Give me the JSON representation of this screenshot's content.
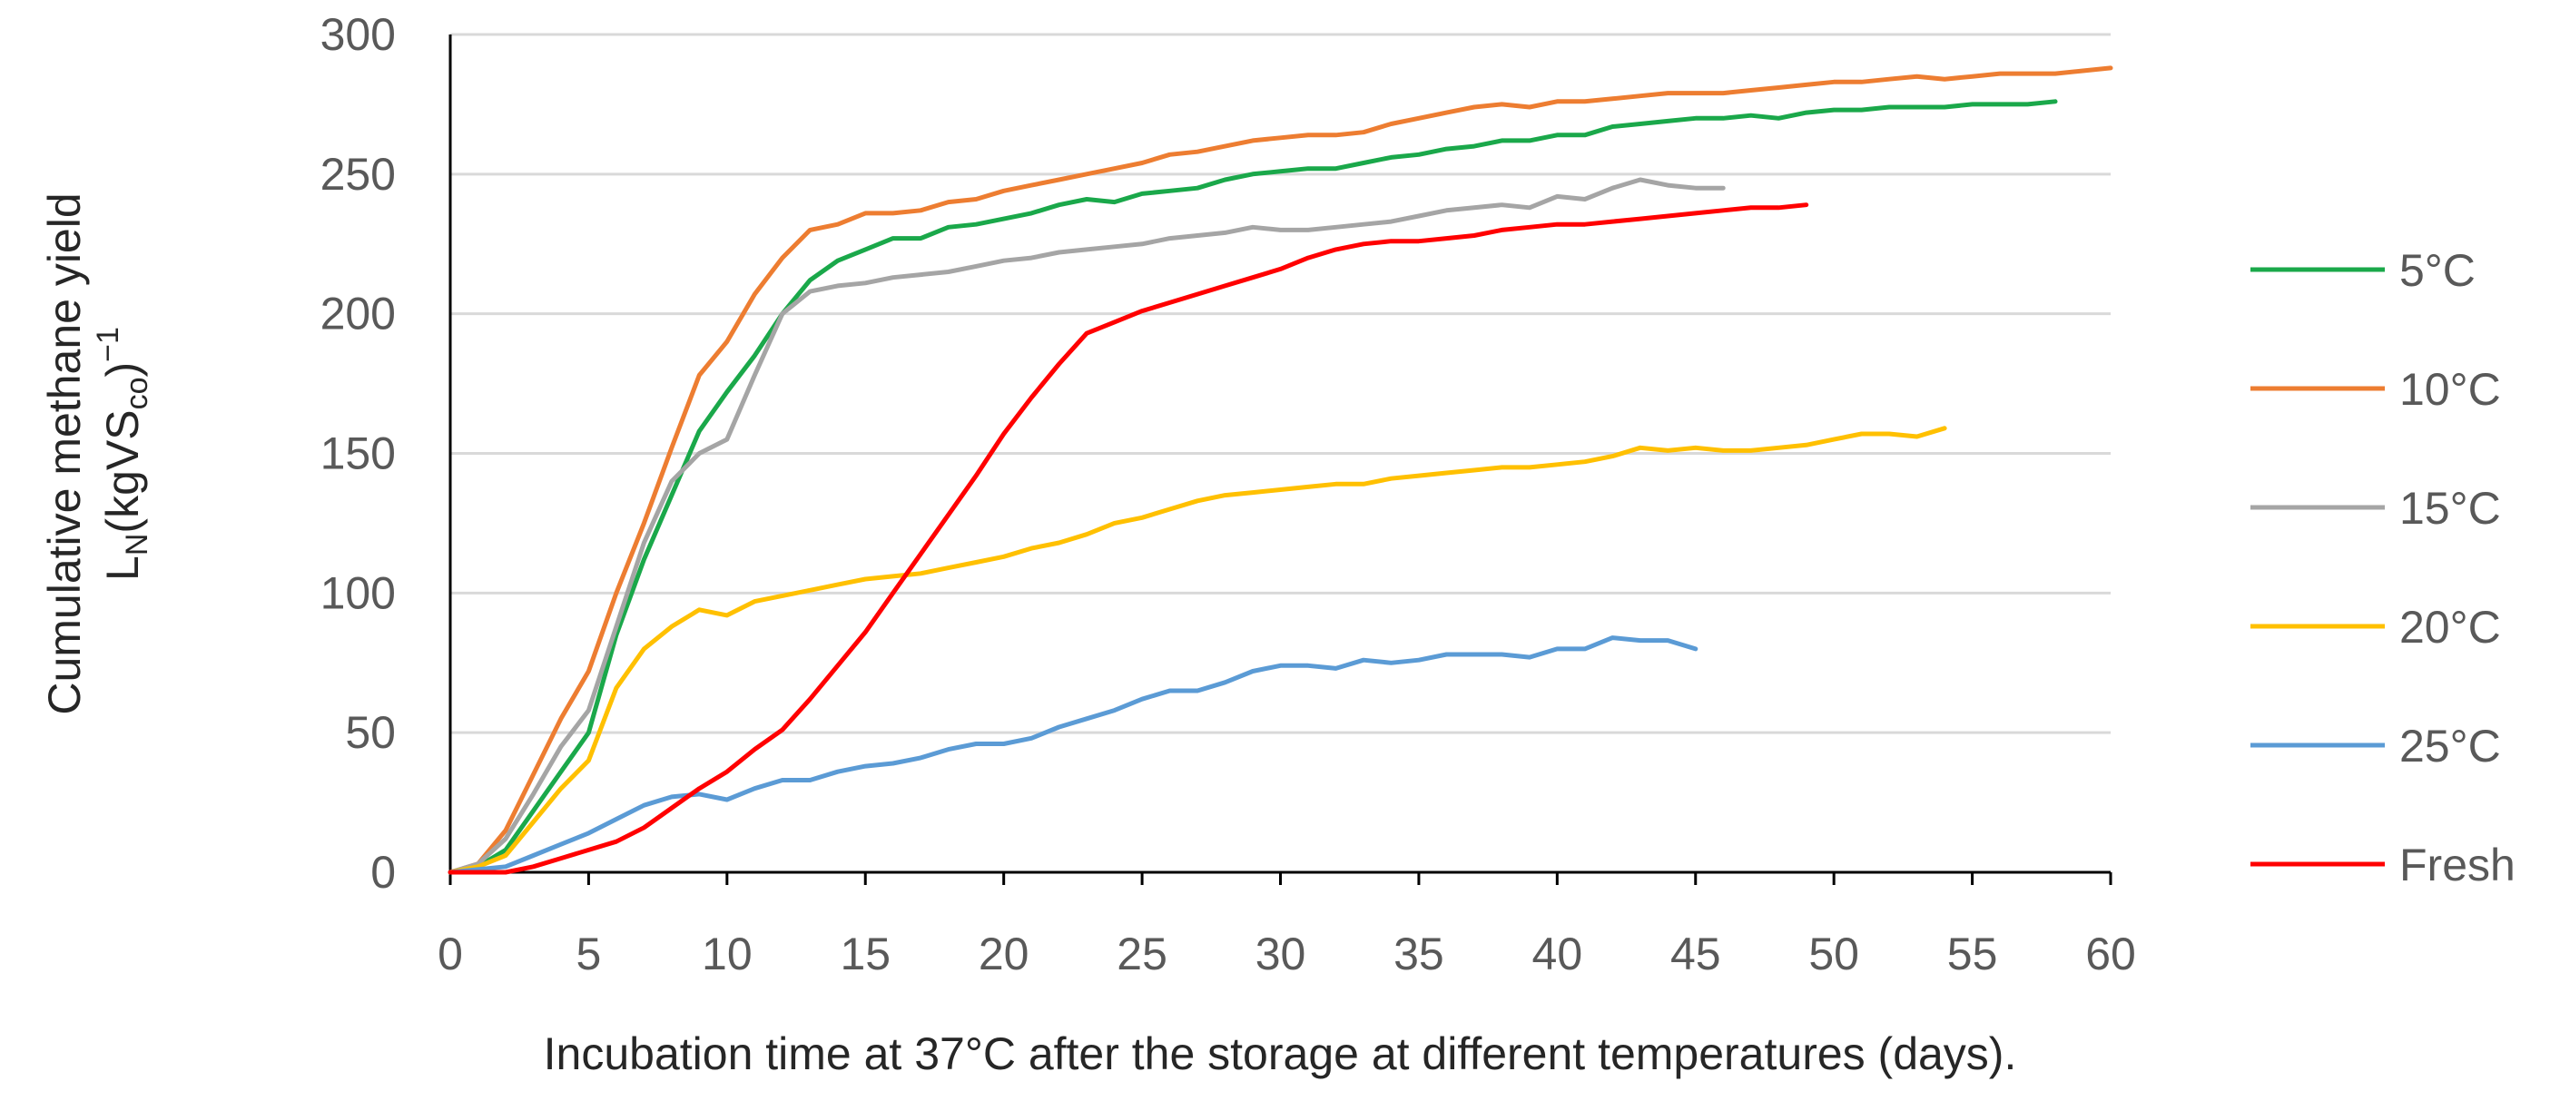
{
  "chart_data": {
    "type": "line",
    "title": "",
    "xlabel": "Incubation time at 37°C after the storage at different temperatures (days).",
    "ylabel": {
      "line1": "Cumulative methane yield",
      "line2_main": "L",
      "line2_sub_n": "N",
      "line2_paren": "(kgVS",
      "line2_sub_co": "co",
      "line2_close": ")",
      "line2_sup": "−1"
    },
    "xlim": [
      0,
      60
    ],
    "ylim": [
      0,
      300
    ],
    "x_ticks": [
      0,
      5,
      10,
      15,
      20,
      25,
      30,
      35,
      40,
      45,
      50,
      55,
      60
    ],
    "y_ticks": [
      0,
      50,
      100,
      150,
      200,
      250,
      300
    ],
    "grid": "horizontal",
    "legend_position": "right",
    "series": [
      {
        "name": "5°C",
        "color": "#1aa84a",
        "x": [
          0,
          1,
          2,
          3,
          4,
          5,
          6,
          7,
          8,
          9,
          10,
          11,
          12,
          13,
          14,
          15,
          16,
          17,
          18,
          19,
          20,
          21,
          22,
          23,
          24,
          25,
          26,
          27,
          28,
          29,
          30,
          31,
          32,
          33,
          34,
          35,
          36,
          37,
          38,
          39,
          40,
          41,
          42,
          43,
          44,
          45,
          46,
          47,
          48,
          49,
          50,
          51,
          52,
          53,
          54,
          55,
          56,
          57,
          58
        ],
        "values": [
          0,
          2,
          8,
          22,
          36,
          50,
          85,
          112,
          135,
          158,
          172,
          185,
          200,
          212,
          219,
          223,
          227,
          227,
          231,
          232,
          234,
          236,
          239,
          241,
          240,
          243,
          244,
          245,
          248,
          250,
          251,
          252,
          252,
          254,
          256,
          257,
          259,
          260,
          262,
          262,
          264,
          264,
          267,
          268,
          269,
          270,
          270,
          271,
          270,
          272,
          273,
          273,
          274,
          274,
          274,
          275,
          275,
          275,
          276
        ]
      },
      {
        "name": "10°C",
        "color": "#ed7d31",
        "x": [
          0,
          1,
          2,
          3,
          4,
          5,
          6,
          7,
          8,
          9,
          10,
          11,
          12,
          13,
          14,
          15,
          16,
          17,
          18,
          19,
          20,
          21,
          22,
          23,
          24,
          25,
          26,
          27,
          28,
          29,
          30,
          31,
          32,
          33,
          34,
          35,
          36,
          37,
          38,
          39,
          40,
          41,
          42,
          43,
          44,
          45,
          46,
          47,
          48,
          49,
          50,
          51,
          52,
          53,
          54,
          55,
          56,
          57,
          58,
          59,
          60
        ],
        "values": [
          0,
          3,
          15,
          35,
          55,
          72,
          100,
          125,
          152,
          178,
          190,
          207,
          220,
          230,
          232,
          236,
          236,
          237,
          240,
          241,
          244,
          246,
          248,
          250,
          252,
          254,
          257,
          258,
          260,
          262,
          263,
          264,
          264,
          265,
          268,
          270,
          272,
          274,
          275,
          274,
          276,
          276,
          277,
          278,
          279,
          279,
          279,
          280,
          281,
          282,
          283,
          283,
          284,
          285,
          284,
          285,
          286,
          286,
          286,
          287,
          288
        ]
      },
      {
        "name": "15°C",
        "color": "#a5a5a5",
        "x": [
          0,
          1,
          2,
          3,
          4,
          5,
          6,
          7,
          8,
          9,
          10,
          11,
          12,
          13,
          14,
          15,
          16,
          17,
          18,
          19,
          20,
          21,
          22,
          23,
          24,
          25,
          26,
          27,
          28,
          29,
          30,
          31,
          32,
          33,
          34,
          35,
          36,
          37,
          38,
          39,
          40,
          41,
          42,
          43,
          44,
          45,
          46
        ],
        "values": [
          0,
          3,
          12,
          28,
          45,
          58,
          88,
          118,
          140,
          150,
          155,
          178,
          200,
          208,
          210,
          211,
          213,
          214,
          215,
          217,
          219,
          220,
          222,
          223,
          224,
          225,
          227,
          228,
          229,
          231,
          230,
          230,
          231,
          232,
          233,
          235,
          237,
          238,
          239,
          238,
          242,
          241,
          245,
          248,
          246,
          245,
          245
        ]
      },
      {
        "name": "20°C",
        "color": "#ffc000",
        "x": [
          0,
          1,
          2,
          3,
          4,
          5,
          6,
          7,
          8,
          9,
          10,
          11,
          12,
          13,
          14,
          15,
          16,
          17,
          18,
          19,
          20,
          21,
          22,
          23,
          24,
          25,
          26,
          27,
          28,
          29,
          30,
          31,
          32,
          33,
          34,
          35,
          36,
          37,
          38,
          39,
          40,
          41,
          42,
          43,
          44,
          45,
          46,
          47,
          48,
          49,
          50,
          51,
          52,
          53,
          54
        ],
        "values": [
          0,
          2,
          6,
          18,
          30,
          40,
          66,
          80,
          88,
          94,
          92,
          97,
          99,
          101,
          103,
          105,
          106,
          107,
          109,
          111,
          113,
          116,
          118,
          121,
          125,
          127,
          130,
          133,
          135,
          136,
          137,
          138,
          139,
          139,
          141,
          142,
          143,
          144,
          145,
          145,
          146,
          147,
          149,
          152,
          151,
          152,
          151,
          151,
          152,
          153,
          155,
          157,
          157,
          156,
          159
        ]
      },
      {
        "name": "25°C",
        "color": "#5b9bd5",
        "x": [
          0,
          1,
          2,
          3,
          4,
          5,
          6,
          7,
          8,
          9,
          10,
          11,
          12,
          13,
          14,
          15,
          16,
          17,
          18,
          19,
          20,
          21,
          22,
          23,
          24,
          25,
          26,
          27,
          28,
          29,
          30,
          31,
          32,
          33,
          34,
          35,
          36,
          37,
          38,
          39,
          40,
          41,
          42,
          43,
          44,
          45
        ],
        "values": [
          0,
          1,
          2,
          6,
          10,
          14,
          19,
          24,
          27,
          28,
          26,
          30,
          33,
          33,
          36,
          38,
          39,
          41,
          44,
          46,
          46,
          48,
          52,
          55,
          58,
          62,
          65,
          65,
          68,
          72,
          74,
          74,
          73,
          76,
          75,
          76,
          78,
          78,
          78,
          77,
          80,
          80,
          84,
          83,
          83,
          80
        ]
      },
      {
        "name": "Fresh",
        "color": "#ff0000",
        "x": [
          0,
          1,
          2,
          3,
          4,
          5,
          6,
          7,
          8,
          9,
          10,
          11,
          12,
          13,
          14,
          15,
          16,
          17,
          18,
          19,
          20,
          21,
          22,
          23,
          24,
          25,
          26,
          27,
          28,
          29,
          30,
          31,
          32,
          33,
          34,
          35,
          36,
          37,
          38,
          39,
          40,
          41,
          42,
          43,
          44,
          45,
          46,
          47,
          48,
          49
        ],
        "values": [
          0,
          0,
          0,
          2,
          5,
          8,
          11,
          16,
          23,
          30,
          36,
          44,
          51,
          62,
          74,
          86,
          100,
          114,
          128,
          142,
          157,
          170,
          182,
          193,
          197,
          201,
          204,
          207,
          210,
          213,
          216,
          220,
          223,
          225,
          226,
          226,
          227,
          228,
          230,
          231,
          232,
          232,
          233,
          234,
          235,
          236,
          237,
          238,
          238,
          239
        ]
      }
    ]
  }
}
